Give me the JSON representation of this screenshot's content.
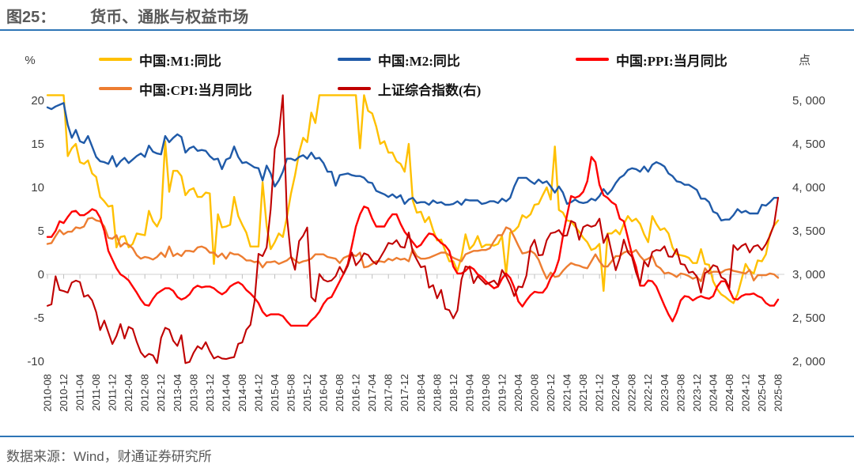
{
  "figure": {
    "label": "图25：",
    "title": "货币、通胀与权益市场"
  },
  "source_note": "数据来源：Wind，财通证券研究所",
  "axes": {
    "left_unit": "%",
    "right_unit": "点"
  },
  "chart_data": {
    "type": "line",
    "title": "货币、通胀与权益市场",
    "x_frequency": "monthly",
    "x_start": "2010-08",
    "x_end": "2025-08",
    "legend_position": "top",
    "grid": "zero-line-only",
    "left_axis": {
      "unit": "%",
      "min": -10,
      "max": 20,
      "ticks": [
        20,
        15,
        10,
        5,
        0,
        -5,
        -10
      ],
      "clip_max": 20.6
    },
    "right_axis": {
      "unit": "点",
      "min": 2000,
      "max": 5000,
      "tick_labels": [
        "5, 000",
        "4, 500",
        "4, 000",
        "3, 500",
        "3, 000",
        "2, 500",
        "2, 000"
      ]
    },
    "x_tick_labels": [
      "2010-08",
      "2010-12",
      "2011-04",
      "2011-08",
      "2011-12",
      "2012-04",
      "2012-08",
      "2012-12",
      "2013-04",
      "2013-08",
      "2013-12",
      "2014-04",
      "2014-08",
      "2014-12",
      "2015-04",
      "2015-08",
      "2015-12",
      "2016-04",
      "2016-08",
      "2016-12",
      "2017-04",
      "2017-08",
      "2017-12",
      "2018-04",
      "2018-08",
      "2018-12",
      "2019-04",
      "2019-08",
      "2019-12",
      "2020-04",
      "2020-08",
      "2020-12",
      "2021-04",
      "2021-08",
      "2021-12",
      "2022-04",
      "2022-08",
      "2022-12",
      "2023-04",
      "2023-08",
      "2023-12",
      "2024-04",
      "2024-08",
      "2024-12",
      "2025-04",
      "2025-08"
    ],
    "series": [
      {
        "name": "中国:M1:同比",
        "axis": "left",
        "color": "#FFC000",
        "values": [
          21.9,
          20.9,
          22.1,
          22.1,
          21.2,
          13.6,
          14.5,
          15.0,
          12.9,
          12.7,
          13.1,
          11.6,
          11.2,
          8.9,
          8.4,
          7.8,
          7.9,
          3.1,
          4.3,
          4.4,
          3.1,
          3.5,
          4.7,
          4.6,
          4.5,
          7.3,
          6.1,
          5.5,
          6.5,
          15.3,
          9.5,
          11.9,
          11.9,
          11.3,
          9.1,
          9.7,
          9.9,
          8.9,
          8.9,
          9.4,
          9.3,
          1.2,
          6.9,
          5.4,
          5.5,
          5.7,
          8.9,
          6.7,
          5.7,
          4.8,
          3.2,
          3.2,
          3.2,
          10.6,
          5.6,
          2.9,
          3.7,
          4.7,
          4.3,
          6.6,
          9.3,
          11.4,
          14.0,
          15.7,
          15.2,
          18.6,
          17.4,
          22.1,
          22.9,
          23.7,
          24.6,
          25.4,
          25.3,
          24.7,
          23.9,
          22.7,
          21.4,
          14.5,
          21.4,
          18.8,
          18.5,
          17.0,
          15.0,
          15.3,
          14.0,
          14.0,
          13.0,
          12.7,
          11.8,
          15.0,
          8.5,
          7.1,
          7.2,
          6.0,
          6.6,
          5.1,
          3.9,
          4.0,
          2.7,
          1.5,
          1.5,
          0.4,
          2.0,
          4.6,
          2.9,
          3.4,
          4.4,
          3.1,
          3.4,
          3.4,
          3.3,
          3.5,
          4.4,
          0.0,
          4.8,
          5.0,
          5.5,
          6.8,
          6.5,
          6.9,
          8.0,
          8.1,
          9.1,
          10.0,
          8.6,
          14.7,
          7.4,
          7.1,
          6.2,
          6.1,
          5.5,
          4.9,
          4.2,
          3.7,
          2.8,
          3.0,
          3.5,
          -1.9,
          4.7,
          4.7,
          5.1,
          4.6,
          5.8,
          6.7,
          6.1,
          6.4,
          5.8,
          4.6,
          3.7,
          6.7,
          5.8,
          5.1,
          5.3,
          4.7,
          3.1,
          2.3,
          2.2,
          2.1,
          1.9,
          1.3,
          1.3,
          2.9,
          1.2,
          1.1,
          -0.8,
          -1.7,
          -2.3,
          -2.6,
          -3.0,
          -3.3,
          -2.3,
          -0.6,
          1.2,
          0.4,
          0.1,
          1.6,
          1.5,
          2.3,
          4.6,
          5.6,
          6.2
        ]
      },
      {
        "name": "中国:M2:同比",
        "axis": "left",
        "color": "#1F5AA8",
        "values": [
          19.2,
          19.0,
          19.3,
          19.5,
          19.7,
          17.2,
          15.7,
          16.6,
          15.3,
          15.1,
          15.9,
          14.7,
          13.5,
          13.0,
          12.9,
          12.7,
          13.6,
          12.4,
          13.0,
          13.4,
          12.8,
          13.2,
          13.6,
          13.9,
          13.5,
          14.8,
          14.1,
          13.9,
          13.8,
          15.9,
          15.2,
          15.7,
          16.1,
          15.8,
          14.0,
          14.5,
          14.7,
          14.2,
          14.3,
          14.2,
          13.6,
          13.2,
          13.3,
          12.1,
          13.2,
          13.4,
          14.7,
          13.5,
          12.8,
          12.9,
          12.6,
          12.3,
          12.2,
          10.8,
          12.5,
          11.6,
          10.1,
          10.8,
          11.8,
          13.3,
          13.3,
          13.1,
          13.5,
          13.7,
          13.3,
          14.0,
          13.3,
          13.4,
          12.8,
          11.8,
          11.8,
          10.2,
          11.4,
          11.5,
          11.6,
          11.4,
          11.3,
          11.3,
          11.1,
          10.6,
          10.5,
          9.6,
          9.4,
          9.2,
          8.9,
          9.2,
          8.8,
          9.1,
          8.1,
          8.6,
          8.8,
          8.2,
          8.3,
          8.3,
          8.0,
          8.5,
          8.2,
          8.3,
          8.0,
          8.0,
          8.1,
          8.4,
          8.0,
          8.6,
          8.5,
          8.5,
          8.5,
          8.1,
          8.2,
          8.4,
          8.4,
          8.2,
          8.7,
          8.4,
          8.8,
          10.1,
          11.1,
          11.1,
          11.1,
          10.7,
          10.4,
          10.9,
          10.5,
          10.7,
          10.1,
          9.4,
          10.1,
          9.4,
          8.1,
          8.3,
          8.6,
          8.3,
          8.2,
          8.3,
          8.7,
          8.5,
          9.0,
          9.8,
          9.2,
          9.7,
          10.5,
          11.1,
          11.4,
          12.0,
          12.2,
          12.1,
          11.8,
          12.4,
          11.8,
          12.6,
          12.9,
          12.7,
          12.4,
          11.6,
          11.3,
          10.7,
          10.6,
          10.3,
          10.3,
          10.0,
          9.7,
          8.7,
          8.7,
          8.3,
          7.2,
          7.0,
          6.2,
          6.3,
          6.3,
          6.8,
          7.5,
          7.1,
          7.3,
          7.0,
          7.0,
          7.0,
          8.0,
          7.9,
          8.3,
          8.8,
          8.8
        ]
      },
      {
        "name": "中国:PPI:当月同比",
        "axis": "left",
        "color": "#FF0000",
        "values": [
          4.3,
          4.3,
          5.0,
          6.1,
          5.9,
          6.6,
          7.2,
          7.3,
          6.8,
          6.8,
          7.1,
          7.5,
          7.3,
          6.5,
          5.0,
          2.7,
          1.7,
          0.7,
          0.0,
          -0.3,
          -0.7,
          -1.4,
          -2.1,
          -2.9,
          -3.5,
          -3.6,
          -2.8,
          -2.2,
          -1.9,
          -1.6,
          -1.6,
          -1.9,
          -2.6,
          -2.9,
          -2.7,
          -2.3,
          -1.6,
          -1.3,
          -1.5,
          -1.4,
          -1.4,
          -1.6,
          -2.0,
          -2.3,
          -2.0,
          -1.4,
          -1.1,
          -0.9,
          -1.2,
          -1.8,
          -2.2,
          -2.7,
          -3.3,
          -4.3,
          -4.8,
          -4.6,
          -4.6,
          -4.6,
          -4.8,
          -5.4,
          -5.9,
          -5.9,
          -5.9,
          -5.9,
          -5.9,
          -5.3,
          -4.9,
          -4.3,
          -3.4,
          -2.8,
          -2.6,
          -1.7,
          -0.8,
          0.1,
          1.2,
          3.3,
          5.5,
          6.9,
          7.8,
          7.6,
          6.4,
          5.5,
          5.5,
          5.5,
          6.3,
          6.9,
          6.9,
          5.8,
          4.9,
          4.3,
          3.7,
          3.1,
          3.4,
          4.1,
          4.7,
          4.6,
          4.1,
          3.6,
          3.3,
          2.7,
          0.9,
          0.1,
          0.1,
          0.4,
          0.9,
          0.6,
          0.0,
          -0.3,
          -0.8,
          -1.2,
          -1.6,
          -1.4,
          -0.5,
          0.1,
          -0.4,
          -1.5,
          -3.1,
          -3.7,
          -3.0,
          -2.4,
          -2.0,
          -2.1,
          -2.1,
          -1.5,
          -0.4,
          0.3,
          1.7,
          4.4,
          6.8,
          9.0,
          8.8,
          9.0,
          9.5,
          10.7,
          13.5,
          12.9,
          10.3,
          9.1,
          8.8,
          8.3,
          8.0,
          6.4,
          6.1,
          4.2,
          2.3,
          0.9,
          -1.3,
          -1.3,
          -0.7,
          -0.8,
          -1.4,
          -2.5,
          -3.6,
          -4.6,
          -5.4,
          -4.4,
          -3.0,
          -2.5,
          -2.6,
          -3.0,
          -2.7,
          -2.5,
          -2.7,
          -2.8,
          -2.5,
          -1.4,
          -0.8,
          -0.8,
          -1.8,
          -2.8,
          -2.9,
          -2.5,
          -2.3,
          -2.3,
          -2.2,
          -2.5,
          -2.7,
          -3.3,
          -3.6,
          -3.6,
          -2.9
        ]
      },
      {
        "name": "中国:CPI:当月同比",
        "axis": "left",
        "color": "#ED7D31",
        "values": [
          3.5,
          3.6,
          4.4,
          5.1,
          4.6,
          4.9,
          4.9,
          5.4,
          5.3,
          5.5,
          6.4,
          6.5,
          6.2,
          6.1,
          5.5,
          4.2,
          4.1,
          4.5,
          3.2,
          3.6,
          3.4,
          3.0,
          2.2,
          1.8,
          2.0,
          1.9,
          1.7,
          2.0,
          2.5,
          2.0,
          3.2,
          2.1,
          2.4,
          2.1,
          2.7,
          2.7,
          2.6,
          3.1,
          3.2,
          3.0,
          2.5,
          2.5,
          2.0,
          2.4,
          1.8,
          2.5,
          2.3,
          2.3,
          2.0,
          1.6,
          1.6,
          1.4,
          1.5,
          0.8,
          1.4,
          1.4,
          1.5,
          1.2,
          1.4,
          1.6,
          2.0,
          1.6,
          1.3,
          1.5,
          1.6,
          1.8,
          2.3,
          2.3,
          2.3,
          2.0,
          1.9,
          1.8,
          1.3,
          1.9,
          2.1,
          2.3,
          2.1,
          2.5,
          0.8,
          0.9,
          1.2,
          1.5,
          1.5,
          1.4,
          1.8,
          1.6,
          1.9,
          1.7,
          1.8,
          1.5,
          2.9,
          2.1,
          1.8,
          1.8,
          1.9,
          2.1,
          2.3,
          2.5,
          2.5,
          2.2,
          1.9,
          1.7,
          1.5,
          2.3,
          2.5,
          2.7,
          2.7,
          2.8,
          2.8,
          3.0,
          3.8,
          4.5,
          4.5,
          5.4,
          5.2,
          4.3,
          3.3,
          2.4,
          2.5,
          2.7,
          2.4,
          1.7,
          0.5,
          -0.5,
          0.2,
          -0.3,
          -0.2,
          0.4,
          0.9,
          1.3,
          1.1,
          1.0,
          0.8,
          0.7,
          1.5,
          2.3,
          1.5,
          0.9,
          0.9,
          1.5,
          2.1,
          2.1,
          2.5,
          2.7,
          2.5,
          2.8,
          2.1,
          1.6,
          1.8,
          2.1,
          1.0,
          0.7,
          0.1,
          0.2,
          0.0,
          -0.3,
          0.1,
          0.0,
          -0.2,
          -0.5,
          -0.3,
          -0.8,
          0.7,
          0.1,
          0.3,
          0.3,
          0.2,
          0.5,
          0.6,
          0.4,
          0.3,
          0.2,
          0.1,
          0.5,
          -0.7,
          -0.1,
          -0.1,
          -0.1,
          0.1,
          0.0,
          -0.4
        ]
      },
      {
        "name": "上证综合指数(右)",
        "axis": "right",
        "color": "#C00000",
        "values": [
          2638,
          2655,
          2978,
          2820,
          2808,
          2790,
          2905,
          2928,
          2911,
          2743,
          2762,
          2701,
          2567,
          2359,
          2468,
          2333,
          2199,
          2292,
          2428,
          2262,
          2396,
          2372,
          2225,
          2103,
          2047,
          2086,
          2068,
          1980,
          2269,
          2385,
          2365,
          2236,
          2177,
          2300,
          1979,
          1993,
          2098,
          2174,
          2141,
          2220,
          2116,
          2033,
          2056,
          2033,
          2026,
          2039,
          2048,
          2201,
          2217,
          2363,
          2420,
          2682,
          3235,
          3210,
          3310,
          3748,
          4442,
          4612,
          5166,
          3664,
          3206,
          3053,
          3383,
          3445,
          3539,
          2738,
          2688,
          3004,
          2938,
          2917,
          2930,
          2979,
          3085,
          3005,
          3100,
          3250,
          3104,
          3159,
          3242,
          3223,
          3155,
          3117,
          3192,
          3273,
          3361,
          3349,
          3393,
          3317,
          3307,
          3481,
          3259,
          3169,
          3082,
          3095,
          2847,
          2876,
          2725,
          2821,
          2603,
          2588,
          2494,
          2585,
          2941,
          3091,
          3078,
          2899,
          2979,
          2933,
          2886,
          2905,
          2929,
          2872,
          3050,
          2977,
          2880,
          2750,
          2860,
          2852,
          2985,
          3310,
          3396,
          3218,
          3225,
          3392,
          3473,
          3483,
          3509,
          3442,
          3447,
          3615,
          3591,
          3397,
          3544,
          3568,
          3547,
          3564,
          3640,
          3361,
          3462,
          3252,
          3047,
          3186,
          3399,
          3253,
          3202,
          3024,
          2893,
          3151,
          3089,
          3256,
          3280,
          3273,
          3323,
          3205,
          3202,
          3291,
          3120,
          3110,
          3019,
          3030,
          2975,
          2789,
          3015,
          3041,
          3105,
          3087,
          2967,
          2939,
          2842,
          3336,
          3280,
          3326,
          3352,
          3251,
          3321,
          3336,
          3279,
          3347,
          3444,
          3573,
          3880
        ]
      }
    ]
  }
}
